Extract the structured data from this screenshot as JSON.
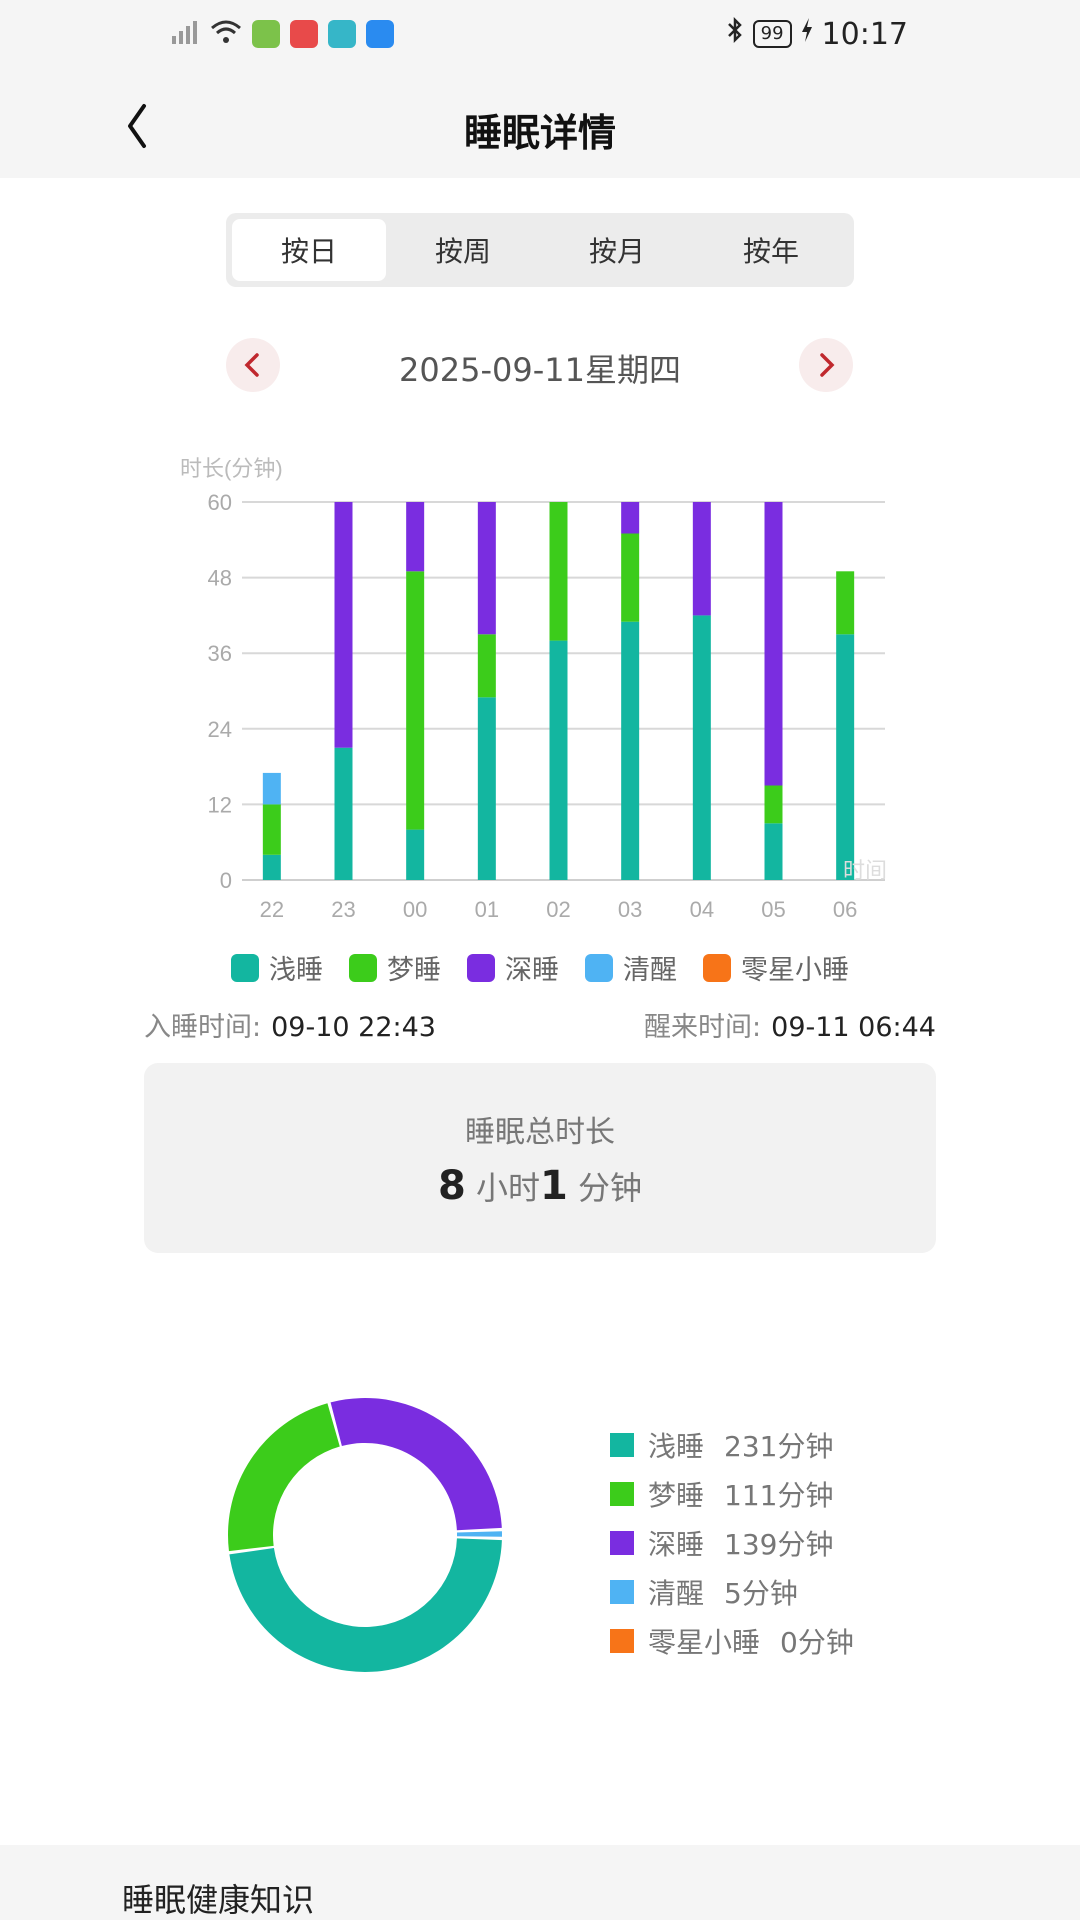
{
  "status_bar": {
    "time": "10:17",
    "battery": "99"
  },
  "header": {
    "title": "睡眠详情"
  },
  "tabs": [
    {
      "label": "按日",
      "active": true
    },
    {
      "label": "按周",
      "active": false
    },
    {
      "label": "按月",
      "active": false
    },
    {
      "label": "按年",
      "active": false
    }
  ],
  "date_nav": {
    "label": "2025-09-11星期四"
  },
  "colors": {
    "light": "#13b6a0",
    "dream": "#3ccc1b",
    "deep": "#7a2de0",
    "awake": "#4fb3f3",
    "nap": "#f77418"
  },
  "legend": [
    "浅睡",
    "梦睡",
    "深睡",
    "清醒",
    "零星小睡"
  ],
  "sleep_times": {
    "sleep_label": "入睡时间:",
    "sleep_value": "09-10 22:43",
    "wake_label": "醒来时间:",
    "wake_value": "09-11 06:44"
  },
  "total": {
    "label": "睡眠总时长",
    "hours": "8",
    "hours_unit": "小时",
    "minutes": "1",
    "minutes_unit": "分钟"
  },
  "chart_data": [
    {
      "type": "bar",
      "stacked": true,
      "ylabel": "时长(分钟)",
      "xlabel": "时间",
      "ylim": [
        0,
        60
      ],
      "yticks": [
        0,
        12,
        24,
        36,
        48,
        60
      ],
      "categories": [
        "22",
        "23",
        "00",
        "01",
        "02",
        "03",
        "04",
        "05",
        "06"
      ],
      "series": [
        {
          "name": "浅睡",
          "values": [
            4,
            21,
            8,
            29,
            38,
            41,
            42,
            9,
            39
          ]
        },
        {
          "name": "梦睡",
          "values": [
            8,
            0,
            41,
            10,
            22,
            14,
            0,
            6,
            10
          ]
        },
        {
          "name": "深睡",
          "values": [
            0,
            39,
            11,
            21,
            0,
            5,
            18,
            45,
            0
          ]
        },
        {
          "name": "清醒",
          "values": [
            5,
            0,
            0,
            0,
            0,
            0,
            0,
            0,
            0
          ]
        },
        {
          "name": "零星小睡",
          "values": [
            0,
            0,
            0,
            0,
            0,
            0,
            0,
            0,
            0
          ]
        }
      ],
      "grid": true,
      "legend_position": "bottom"
    },
    {
      "type": "pie",
      "donut": true,
      "labels": [
        "浅睡",
        "梦睡",
        "深睡",
        "清醒",
        "零星小睡"
      ],
      "values": [
        231,
        111,
        139,
        5,
        0
      ],
      "unit": "分钟",
      "legend_position": "right"
    }
  ],
  "donut_legend": [
    {
      "label": "浅睡",
      "value": "231分钟"
    },
    {
      "label": "梦睡",
      "value": "111分钟"
    },
    {
      "label": "深睡",
      "value": "139分钟"
    },
    {
      "label": "清醒",
      "value": "5分钟"
    },
    {
      "label": "零星小睡",
      "value": "0分钟"
    }
  ],
  "footer": {
    "title": "睡眠健康知识"
  }
}
